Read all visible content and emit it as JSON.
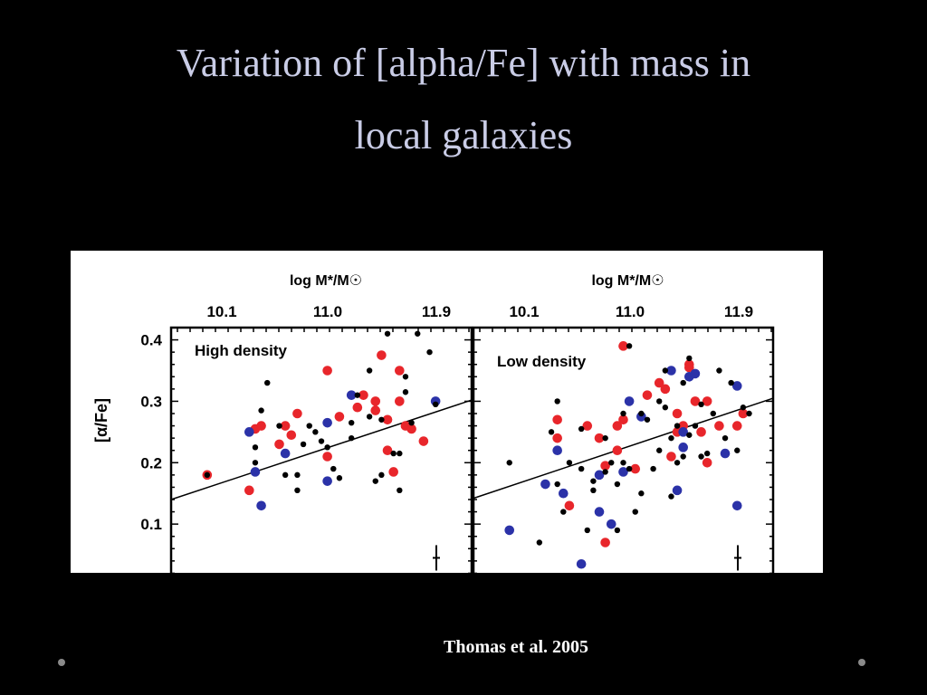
{
  "slide": {
    "title_line1": "Variation of [alpha/Fe] with mass  in",
    "title_line2": "local galaxies",
    "citation": "Thomas et al. 2005"
  },
  "colors": {
    "background": "#000000",
    "title": "#c9cce6",
    "red": "#e8262b",
    "blue": "#2b32a8",
    "black": "#000000"
  },
  "chart_data": [
    {
      "type": "scatter",
      "panel_label": "High density",
      "top_axis_label": "log M*/M☉",
      "top_ticks": [
        "10.1",
        "11.0",
        "11.9"
      ],
      "ylabel": "[α/Fe]",
      "y_ticks": [
        "0.1",
        "0.2",
        "0.3",
        "0.4"
      ],
      "ylim": [
        0.0,
        0.42
      ],
      "xlim": [
        9.8,
        12.3
      ],
      "fit_line": [
        [
          9.8,
          0.14
        ],
        [
          12.3,
          0.302
        ]
      ],
      "series": [
        {
          "color": "red",
          "points": [
            [
              10.1,
              0.18
            ],
            [
              10.5,
              0.255
            ],
            [
              10.55,
              0.26
            ],
            [
              10.45,
              0.155
            ],
            [
              10.7,
              0.23
            ],
            [
              10.8,
              0.245
            ],
            [
              10.85,
              0.28
            ],
            [
              10.75,
              0.26
            ],
            [
              11.1,
              0.35
            ],
            [
              11.1,
              0.21
            ],
            [
              11.2,
              0.275
            ],
            [
              11.35,
              0.29
            ],
            [
              11.4,
              0.31
            ],
            [
              11.5,
              0.3
            ],
            [
              11.55,
              0.375
            ],
            [
              11.6,
              0.22
            ],
            [
              11.65,
              0.185
            ],
            [
              11.7,
              0.35
            ],
            [
              11.7,
              0.3
            ],
            [
              11.75,
              0.26
            ],
            [
              11.8,
              0.255
            ],
            [
              11.9,
              0.235
            ],
            [
              11.5,
              0.285
            ],
            [
              11.6,
              0.27
            ]
          ]
        },
        {
          "color": "blue",
          "points": [
            [
              10.45,
              0.25
            ],
            [
              10.5,
              0.185
            ],
            [
              10.55,
              0.13
            ],
            [
              10.75,
              0.215
            ],
            [
              11.1,
              0.265
            ],
            [
              11.1,
              0.17
            ],
            [
              11.3,
              0.31
            ],
            [
              12.0,
              0.3
            ]
          ]
        },
        {
          "color": "black",
          "points": [
            [
              10.1,
              0.18
            ],
            [
              10.5,
              0.2
            ],
            [
              10.55,
              0.285
            ],
            [
              10.5,
              0.225
            ],
            [
              10.6,
              0.33
            ],
            [
              10.7,
              0.26
            ],
            [
              10.75,
              0.18
            ],
            [
              10.85,
              0.155
            ],
            [
              10.85,
              0.18
            ],
            [
              10.9,
              0.23
            ],
            [
              10.95,
              0.26
            ],
            [
              11.0,
              0.25
            ],
            [
              11.05,
              0.235
            ],
            [
              11.1,
              0.225
            ],
            [
              11.15,
              0.19
            ],
            [
              11.2,
              0.175
            ],
            [
              11.3,
              0.265
            ],
            [
              11.35,
              0.31
            ],
            [
              11.45,
              0.35
            ],
            [
              11.5,
              0.17
            ],
            [
              11.55,
              0.18
            ],
            [
              11.6,
              0.41
            ],
            [
              11.65,
              0.215
            ],
            [
              11.7,
              0.215
            ],
            [
              11.7,
              0.155
            ],
            [
              11.75,
              0.34
            ],
            [
              11.75,
              0.315
            ],
            [
              11.8,
              0.265
            ],
            [
              11.85,
              0.41
            ],
            [
              11.95,
              0.38
            ],
            [
              12.0,
              0.295
            ],
            [
              11.55,
              0.27
            ],
            [
              11.45,
              0.275
            ],
            [
              11.3,
              0.24
            ]
          ]
        }
      ]
    },
    {
      "type": "scatter",
      "panel_label": "Low density",
      "top_axis_label": "log M*/M☉",
      "top_ticks": [
        "10.1",
        "11.0",
        "11.9"
      ],
      "ylabel": "",
      "y_ticks": [],
      "ylim": [
        0.0,
        0.42
      ],
      "xlim": [
        9.8,
        12.3
      ],
      "fit_line": [
        [
          9.8,
          0.142
        ],
        [
          12.3,
          0.305
        ]
      ],
      "series": [
        {
          "color": "red",
          "points": [
            [
              10.5,
              0.27
            ],
            [
              10.5,
              0.24
            ],
            [
              10.6,
              0.13
            ],
            [
              10.75,
              0.26
            ],
            [
              10.85,
              0.24
            ],
            [
              10.9,
              0.195
            ],
            [
              10.9,
              0.07
            ],
            [
              11.0,
              0.22
            ],
            [
              11.0,
              0.26
            ],
            [
              11.05,
              0.27
            ],
            [
              11.05,
              0.39
            ],
            [
              11.15,
              0.19
            ],
            [
              11.25,
              0.31
            ],
            [
              11.35,
              0.33
            ],
            [
              11.4,
              0.32
            ],
            [
              11.45,
              0.21
            ],
            [
              11.5,
              0.25
            ],
            [
              11.55,
              0.26
            ],
            [
              11.6,
              0.36
            ],
            [
              11.65,
              0.3
            ],
            [
              11.7,
              0.25
            ],
            [
              11.75,
              0.2
            ],
            [
              11.75,
              0.3
            ],
            [
              11.85,
              0.26
            ],
            [
              12.0,
              0.26
            ],
            [
              12.05,
              0.28
            ],
            [
              11.5,
              0.28
            ],
            [
              11.6,
              0.355
            ]
          ]
        },
        {
          "color": "blue",
          "points": [
            [
              10.1,
              0.09
            ],
            [
              10.4,
              0.165
            ],
            [
              10.5,
              0.22
            ],
            [
              10.55,
              0.15
            ],
            [
              10.7,
              0.035
            ],
            [
              10.85,
              0.18
            ],
            [
              10.85,
              0.12
            ],
            [
              10.95,
              0.1
            ],
            [
              11.05,
              0.185
            ],
            [
              11.1,
              0.3
            ],
            [
              11.2,
              0.275
            ],
            [
              11.45,
              0.35
            ],
            [
              11.5,
              0.155
            ],
            [
              11.55,
              0.225
            ],
            [
              11.6,
              0.34
            ],
            [
              11.65,
              0.345
            ],
            [
              11.9,
              0.215
            ],
            [
              12.0,
              0.325
            ],
            [
              12.0,
              0.13
            ],
            [
              11.55,
              0.25
            ]
          ]
        },
        {
          "color": "black",
          "points": [
            [
              10.1,
              0.2
            ],
            [
              10.35,
              0.07
            ],
            [
              10.45,
              0.25
            ],
            [
              10.5,
              0.3
            ],
            [
              10.5,
              0.165
            ],
            [
              10.55,
              0.12
            ],
            [
              10.6,
              0.2
            ],
            [
              10.7,
              0.255
            ],
            [
              10.7,
              0.19
            ],
            [
              10.75,
              0.09
            ],
            [
              10.8,
              0.17
            ],
            [
              10.8,
              0.155
            ],
            [
              10.9,
              0.24
            ],
            [
              10.9,
              0.185
            ],
            [
              10.95,
              0.2
            ],
            [
              11.0,
              0.09
            ],
            [
              11.0,
              0.165
            ],
            [
              11.05,
              0.28
            ],
            [
              11.05,
              0.2
            ],
            [
              11.1,
              0.39
            ],
            [
              11.1,
              0.19
            ],
            [
              11.15,
              0.12
            ],
            [
              11.2,
              0.28
            ],
            [
              11.2,
              0.15
            ],
            [
              11.25,
              0.27
            ],
            [
              11.3,
              0.19
            ],
            [
              11.35,
              0.22
            ],
            [
              11.4,
              0.35
            ],
            [
              11.4,
              0.29
            ],
            [
              11.45,
              0.145
            ],
            [
              11.5,
              0.26
            ],
            [
              11.5,
              0.2
            ],
            [
              11.55,
              0.33
            ],
            [
              11.55,
              0.21
            ],
            [
              11.6,
              0.37
            ],
            [
              11.65,
              0.26
            ],
            [
              11.7,
              0.21
            ],
            [
              11.7,
              0.295
            ],
            [
              11.75,
              0.215
            ],
            [
              11.8,
              0.28
            ],
            [
              11.85,
              0.35
            ],
            [
              11.9,
              0.24
            ],
            [
              11.95,
              0.33
            ],
            [
              12.0,
              0.22
            ],
            [
              12.05,
              0.29
            ],
            [
              12.1,
              0.28
            ],
            [
              11.45,
              0.24
            ],
            [
              11.6,
              0.245
            ],
            [
              11.35,
              0.3
            ]
          ]
        }
      ]
    }
  ]
}
